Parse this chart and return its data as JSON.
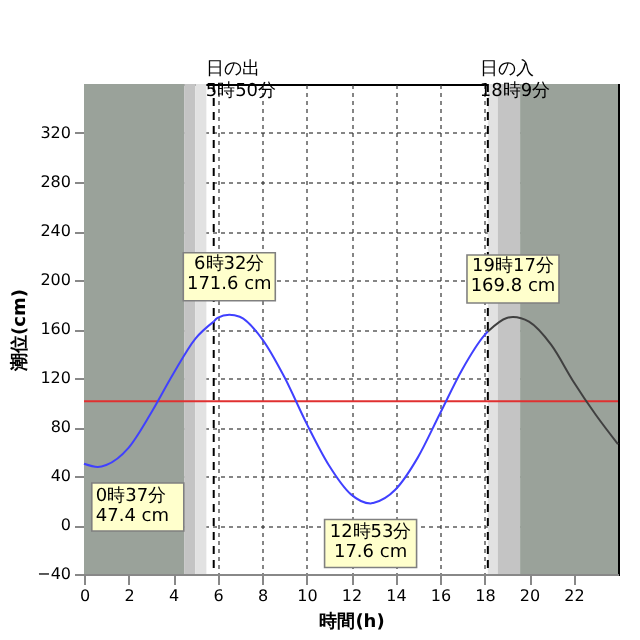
{
  "chart_data": {
    "type": "line",
    "xlabel": "時間(h)",
    "ylabel": "潮位(cm)",
    "xlim": [
      0,
      24
    ],
    "ylim": [
      -40,
      360
    ],
    "xticks": [
      0,
      2,
      4,
      6,
      8,
      10,
      12,
      14,
      16,
      18,
      20,
      22
    ],
    "yticks": [
      -40,
      0,
      40,
      80,
      120,
      160,
      200,
      240,
      280,
      320
    ],
    "grid": true,
    "marker": "none",
    "line_style": "solid",
    "series": [
      {
        "color": "#4040ff",
        "x": [
          0,
          0.62,
          1,
          2,
          3,
          4,
          5,
          5.83
        ],
        "values": [
          50,
          47.4,
          49,
          63,
          91,
          123,
          152,
          166
        ]
      },
      {
        "color": "#4040ff",
        "x": [
          5.83,
          6,
          6.53,
          7,
          8,
          9,
          10,
          11,
          12,
          12.88,
          13,
          14,
          15,
          16,
          17,
          18,
          18.15
        ],
        "values": [
          166,
          169,
          171.6,
          170,
          152,
          121,
          83,
          49,
          25,
          17.6,
          18,
          29,
          55,
          91,
          127,
          155,
          158
        ]
      },
      {
        "color": "#404040",
        "x": [
          18.15,
          19,
          19.28,
          20,
          21,
          22,
          23,
          24
        ],
        "values": [
          158,
          169,
          169.8,
          166,
          147,
          117,
          90,
          66
        ]
      }
    ],
    "ref_lines": [
      {
        "axis": "y",
        "value": 101,
        "color": "#e03030",
        "line_style": "solid"
      },
      {
        "axis": "x",
        "value": 5.83,
        "label": "日の出\n5時50分",
        "color": "#000000",
        "line_style": "dashed"
      },
      {
        "axis": "x",
        "value": 18.15,
        "label": "日の入\n18時9分",
        "color": "#000000",
        "line_style": "dashed"
      }
    ],
    "bands": [
      {
        "axis": "x",
        "from": 0,
        "to": 4.5,
        "color": "#9aa29a"
      },
      {
        "axis": "x",
        "from": 4.5,
        "to": 5.0,
        "color": "#c4c4c4"
      },
      {
        "axis": "x",
        "from": 5.0,
        "to": 5.5,
        "color": "#e2e2e2"
      },
      {
        "axis": "x",
        "from": 18.15,
        "to": 18.6,
        "color": "#e2e2e2"
      },
      {
        "axis": "x",
        "from": 18.6,
        "to": 19.6,
        "color": "#c4c4c4"
      },
      {
        "axis": "x",
        "from": 19.6,
        "to": 24,
        "color": "#9aa29a"
      }
    ],
    "annotations": [
      {
        "text": "0時37分\n47.4 cm",
        "x": 0.62,
        "y": 47.4
      },
      {
        "text": "6時32分\n171.6 cm",
        "x": 6.53,
        "y": 171.6
      },
      {
        "text": "12時53分\n17.6 cm",
        "x": 12.88,
        "y": 17.6
      },
      {
        "text": "19時17分\n169.8 cm",
        "x": 19.28,
        "y": 169.8
      }
    ]
  }
}
